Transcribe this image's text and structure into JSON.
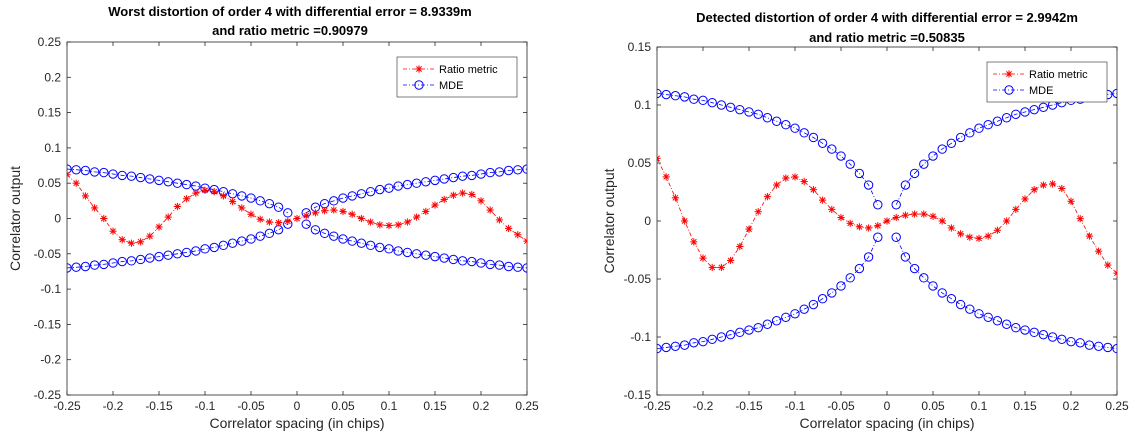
{
  "chart_data": [
    {
      "type": "line",
      "title": [
        "Worst distortion of order 4 with differential error = 8.9339m",
        "and ratio metric =0.90979"
      ],
      "xlabel": "Correlator spacing (in chips)",
      "ylabel": "Correlator output",
      "xlim": [
        -0.25,
        0.25
      ],
      "ylim": [
        -0.25,
        0.25
      ],
      "xticks": [
        -0.25,
        -0.2,
        -0.15,
        -0.1,
        -0.05,
        0,
        0.05,
        0.1,
        0.15,
        0.2,
        0.25
      ],
      "xtick_labels": [
        "-0.25",
        "-0.2",
        "-0.15",
        "-0.1",
        "-0.05",
        "0",
        "0.05",
        "0.1",
        "0.15",
        "0.2",
        "0.25"
      ],
      "yticks": [
        -0.25,
        -0.2,
        -0.15,
        -0.1,
        -0.05,
        0,
        0.05,
        0.1,
        0.15,
        0.2,
        0.25
      ],
      "ytick_labels": [
        "-0.25",
        "-0.2",
        "-0.15",
        "-0.1",
        "-0.05",
        "0",
        "0.05",
        "0.1",
        "0.15",
        "0.2",
        "0.25"
      ],
      "grid": false,
      "legend_position": "top-right",
      "ratio_metric": {
        "name": "Ratio metric",
        "color": "#ff0000",
        "marker": "asterisk",
        "x": [
          -0.25,
          -0.24,
          -0.23,
          -0.22,
          -0.21,
          -0.2,
          -0.19,
          -0.18,
          -0.17,
          -0.16,
          -0.15,
          -0.14,
          -0.13,
          -0.12,
          -0.11,
          -0.1,
          -0.09,
          -0.08,
          -0.07,
          -0.06,
          -0.05,
          -0.04,
          -0.03,
          -0.02,
          -0.01,
          0,
          0.01,
          0.02,
          0.03,
          0.04,
          0.05,
          0.06,
          0.07,
          0.08,
          0.09,
          0.1,
          0.11,
          0.12,
          0.13,
          0.14,
          0.15,
          0.16,
          0.17,
          0.18,
          0.19,
          0.2,
          0.21,
          0.22,
          0.23,
          0.24,
          0.25
        ],
        "y": [
          0.062,
          0.05,
          0.032,
          0.015,
          0.0,
          -0.018,
          -0.03,
          -0.035,
          -0.033,
          -0.025,
          -0.012,
          0.002,
          0.017,
          0.028,
          0.036,
          0.04,
          0.038,
          0.032,
          0.024,
          0.015,
          0.006,
          -0.001,
          -0.005,
          -0.006,
          -0.004,
          0.0,
          0.004,
          0.008,
          0.011,
          0.012,
          0.01,
          0.006,
          0.0,
          -0.005,
          -0.009,
          -0.01,
          -0.009,
          -0.005,
          0.002,
          0.01,
          0.019,
          0.027,
          0.033,
          0.036,
          0.034,
          0.025,
          0.012,
          -0.002,
          -0.014,
          -0.023,
          -0.032
        ]
      },
      "mde": {
        "name": "MDE",
        "color": "#0000ff",
        "marker": "circle",
        "x": [
          -0.25,
          -0.24,
          -0.23,
          -0.22,
          -0.21,
          -0.2,
          -0.19,
          -0.18,
          -0.17,
          -0.16,
          -0.15,
          -0.14,
          -0.13,
          -0.12,
          -0.11,
          -0.1,
          -0.09,
          -0.08,
          -0.07,
          -0.06,
          -0.05,
          -0.04,
          -0.03,
          -0.02,
          -0.01,
          0.01,
          0.02,
          0.03,
          0.04,
          0.05,
          0.06,
          0.07,
          0.08,
          0.09,
          0.1,
          0.11,
          0.12,
          0.13,
          0.14,
          0.15,
          0.16,
          0.17,
          0.18,
          0.19,
          0.2,
          0.21,
          0.22,
          0.23,
          0.24,
          0.25
        ],
        "upper_branch": [
          0.07,
          0.069,
          0.068,
          0.066,
          0.065,
          0.063,
          0.061,
          0.06,
          0.058,
          0.056,
          0.054,
          0.052,
          0.05,
          0.048,
          0.046,
          0.043,
          0.041,
          0.038,
          0.035,
          0.032,
          0.029,
          0.025,
          0.021,
          0.016,
          0.008,
          0.008,
          0.016,
          0.021,
          0.025,
          0.029,
          0.032,
          0.035,
          0.038,
          0.041,
          0.043,
          0.046,
          0.048,
          0.05,
          0.052,
          0.054,
          0.056,
          0.058,
          0.06,
          0.061,
          0.063,
          0.065,
          0.066,
          0.068,
          0.069,
          0.07
        ],
        "lower_branch": [
          -0.07,
          -0.069,
          -0.068,
          -0.066,
          -0.065,
          -0.063,
          -0.061,
          -0.06,
          -0.058,
          -0.056,
          -0.054,
          -0.052,
          -0.05,
          -0.048,
          -0.046,
          -0.043,
          -0.041,
          -0.038,
          -0.035,
          -0.032,
          -0.029,
          -0.025,
          -0.021,
          -0.016,
          -0.008,
          -0.008,
          -0.016,
          -0.021,
          -0.025,
          -0.029,
          -0.032,
          -0.035,
          -0.038,
          -0.041,
          -0.043,
          -0.046,
          -0.048,
          -0.05,
          -0.052,
          -0.054,
          -0.056,
          -0.058,
          -0.06,
          -0.061,
          -0.063,
          -0.065,
          -0.066,
          -0.068,
          -0.069,
          -0.07
        ],
        "branch_crossing": "upper branch descends left-to-right for x<0 and the lower ascends, mirrored for x>0"
      }
    },
    {
      "type": "line",
      "title": [
        "Detected distortion of order 4 with differential error = 2.9942m",
        "and ratio metric =0.50835"
      ],
      "xlabel": "Correlator spacing (in chips)",
      "ylabel": "Correlator output",
      "xlim": [
        -0.25,
        0.25
      ],
      "ylim": [
        -0.15,
        0.15
      ],
      "xticks": [
        -0.25,
        -0.2,
        -0.15,
        -0.1,
        -0.05,
        0,
        0.05,
        0.1,
        0.15,
        0.2,
        0.25
      ],
      "xtick_labels": [
        "-0.25",
        "-0.2",
        "-0.15",
        "-0.1",
        "-0.05",
        "0",
        "0.05",
        "0.1",
        "0.15",
        "0.2",
        "0.25"
      ],
      "yticks": [
        -0.15,
        -0.1,
        -0.05,
        0,
        0.05,
        0.1,
        0.15
      ],
      "ytick_labels": [
        "-0.15",
        "-0.1",
        "-0.05",
        "0",
        "0.05",
        "0.1",
        "0.15"
      ],
      "grid": false,
      "legend_position": "top-right",
      "ratio_metric": {
        "name": "Ratio metric",
        "color": "#ff0000",
        "marker": "asterisk",
        "x": [
          -0.25,
          -0.24,
          -0.23,
          -0.22,
          -0.21,
          -0.2,
          -0.19,
          -0.18,
          -0.17,
          -0.16,
          -0.15,
          -0.14,
          -0.13,
          -0.12,
          -0.11,
          -0.1,
          -0.09,
          -0.08,
          -0.07,
          -0.06,
          -0.05,
          -0.04,
          -0.03,
          -0.02,
          -0.01,
          0,
          0.01,
          0.02,
          0.03,
          0.04,
          0.05,
          0.06,
          0.07,
          0.08,
          0.09,
          0.1,
          0.11,
          0.12,
          0.13,
          0.14,
          0.15,
          0.16,
          0.17,
          0.18,
          0.19,
          0.2,
          0.21,
          0.22,
          0.23,
          0.24,
          0.25
        ],
        "y": [
          0.054,
          0.038,
          0.02,
          0.0,
          -0.018,
          -0.032,
          -0.04,
          -0.04,
          -0.034,
          -0.022,
          -0.007,
          0.008,
          0.021,
          0.031,
          0.037,
          0.038,
          0.034,
          0.027,
          0.018,
          0.01,
          0.003,
          -0.002,
          -0.005,
          -0.006,
          -0.004,
          0.0,
          0.003,
          0.005,
          0.006,
          0.006,
          0.004,
          0.0,
          -0.006,
          -0.011,
          -0.014,
          -0.015,
          -0.013,
          -0.008,
          0.0,
          0.01,
          0.019,
          0.027,
          0.031,
          0.032,
          0.028,
          0.017,
          0.002,
          -0.013,
          -0.026,
          -0.038,
          -0.045
        ]
      },
      "mde": {
        "name": "MDE",
        "color": "#0000ff",
        "marker": "circle",
        "x": [
          -0.25,
          -0.24,
          -0.23,
          -0.22,
          -0.21,
          -0.2,
          -0.19,
          -0.18,
          -0.17,
          -0.16,
          -0.15,
          -0.14,
          -0.13,
          -0.12,
          -0.11,
          -0.1,
          -0.09,
          -0.08,
          -0.07,
          -0.06,
          -0.05,
          -0.04,
          -0.03,
          -0.02,
          -0.01,
          0.01,
          0.02,
          0.03,
          0.04,
          0.05,
          0.06,
          0.07,
          0.08,
          0.09,
          0.1,
          0.11,
          0.12,
          0.13,
          0.14,
          0.15,
          0.16,
          0.17,
          0.18,
          0.19,
          0.2,
          0.21,
          0.22,
          0.23,
          0.24,
          0.25
        ],
        "upper_branch": [
          0.11,
          0.109,
          0.108,
          0.107,
          0.105,
          0.104,
          0.102,
          0.1,
          0.098,
          0.096,
          0.094,
          0.092,
          0.089,
          0.086,
          0.083,
          0.08,
          0.076,
          0.072,
          0.067,
          0.062,
          0.056,
          0.049,
          0.041,
          0.031,
          0.014,
          0.014,
          0.031,
          0.041,
          0.049,
          0.056,
          0.062,
          0.067,
          0.072,
          0.076,
          0.08,
          0.083,
          0.086,
          0.089,
          0.092,
          0.094,
          0.096,
          0.098,
          0.1,
          0.102,
          0.104,
          0.105,
          0.107,
          0.108,
          0.109,
          0.11
        ],
        "lower_branch": [
          -0.11,
          -0.109,
          -0.108,
          -0.107,
          -0.105,
          -0.104,
          -0.102,
          -0.1,
          -0.098,
          -0.096,
          -0.094,
          -0.092,
          -0.089,
          -0.086,
          -0.083,
          -0.08,
          -0.076,
          -0.072,
          -0.067,
          -0.062,
          -0.056,
          -0.049,
          -0.041,
          -0.031,
          -0.014,
          -0.014,
          -0.031,
          -0.041,
          -0.049,
          -0.056,
          -0.062,
          -0.067,
          -0.072,
          -0.076,
          -0.08,
          -0.083,
          -0.086,
          -0.089,
          -0.092,
          -0.094,
          -0.096,
          -0.098,
          -0.1,
          -0.102,
          -0.104,
          -0.105,
          -0.107,
          -0.108,
          -0.109,
          -0.11
        ],
        "branch_crossing": "upper branch descends left-to-right for x<0 and the lower ascends, mirrored for x>0"
      }
    }
  ]
}
